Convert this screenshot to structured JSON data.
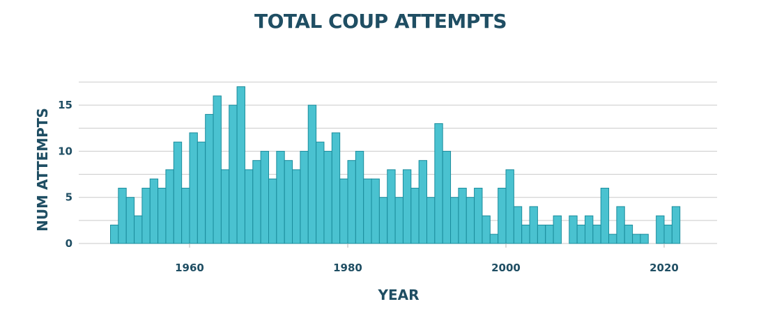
{
  "chart_data": {
    "type": "bar",
    "title": "TOTAL COUP ATTEMPTS",
    "xlabel": "YEAR",
    "ylabel": "NUM ATTEMPTS",
    "bar_color": "#4ac2d0",
    "bar_edge_color": "#1b8c9c",
    "title_color": "#1f4e63",
    "grid": true,
    "x_ticks": [
      1960,
      1980,
      2000,
      2020
    ],
    "y_ticks": [
      0,
      5,
      10,
      15
    ],
    "xlim": [
      1946,
      2026
    ],
    "ylim": [
      0,
      17.5
    ],
    "x": [
      1950,
      1951,
      1952,
      1953,
      1954,
      1955,
      1956,
      1957,
      1958,
      1959,
      1960,
      1961,
      1962,
      1963,
      1964,
      1965,
      1966,
      1967,
      1968,
      1969,
      1970,
      1971,
      1972,
      1973,
      1974,
      1975,
      1976,
      1977,
      1978,
      1979,
      1980,
      1981,
      1982,
      1983,
      1984,
      1985,
      1986,
      1987,
      1988,
      1989,
      1990,
      1991,
      1992,
      1993,
      1994,
      1995,
      1996,
      1997,
      1998,
      1999,
      2000,
      2001,
      2002,
      2003,
      2004,
      2005,
      2006,
      2007,
      2008,
      2009,
      2010,
      2011,
      2012,
      2013,
      2014,
      2015,
      2016,
      2017,
      2018,
      2019,
      2020,
      2021
    ],
    "values": [
      2,
      6,
      5,
      3,
      6,
      7,
      6,
      8,
      11,
      6,
      12,
      11,
      14,
      16,
      8,
      15,
      17,
      8,
      9,
      10,
      7,
      10,
      9,
      8,
      10,
      15,
      11,
      10,
      12,
      7,
      9,
      10,
      7,
      7,
      5,
      8,
      5,
      8,
      6,
      9,
      5,
      13,
      10,
      5,
      6,
      5,
      6,
      3,
      1,
      6,
      8,
      4,
      2,
      4,
      2,
      2,
      3,
      0,
      3,
      2,
      3,
      2,
      6,
      1,
      4,
      2,
      1,
      1,
      0,
      3,
      2,
      4
    ]
  }
}
